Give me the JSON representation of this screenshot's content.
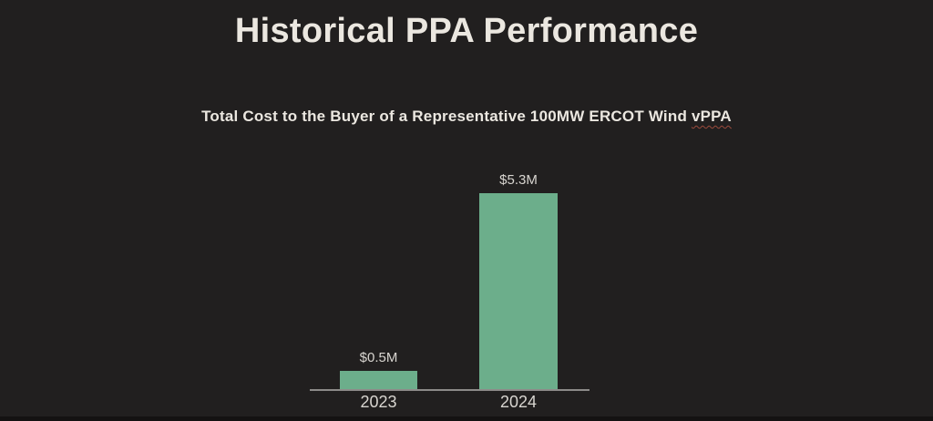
{
  "header": {
    "title": "Historical PPA Performance"
  },
  "subtitle": {
    "prefix": "Total Cost to the Buyer of a Representative 100MW ERCOT Wind ",
    "flagged_word": "vPPA"
  },
  "chart_data": {
    "type": "bar",
    "title": "Total Cost to the Buyer of a Representative 100MW ERCOT Wind vPPA",
    "categories": [
      "2023",
      "2024"
    ],
    "values": [
      0.5,
      5.3
    ],
    "value_labels": [
      "$0.5M",
      "$5.3M"
    ],
    "unit": "$M",
    "ylim": [
      0,
      5.3
    ],
    "grid": false,
    "legend": false,
    "bar_orientation": "vertical"
  },
  "colors": {
    "background": "#211f1f",
    "bottom_strip": "#141212",
    "title_text": "#ebe7e0",
    "bar_fill": "#6cae8b",
    "axis_line": "#8d8b89",
    "label_text": "#d8d5d0",
    "spellcheck": "#9b4a3c"
  }
}
